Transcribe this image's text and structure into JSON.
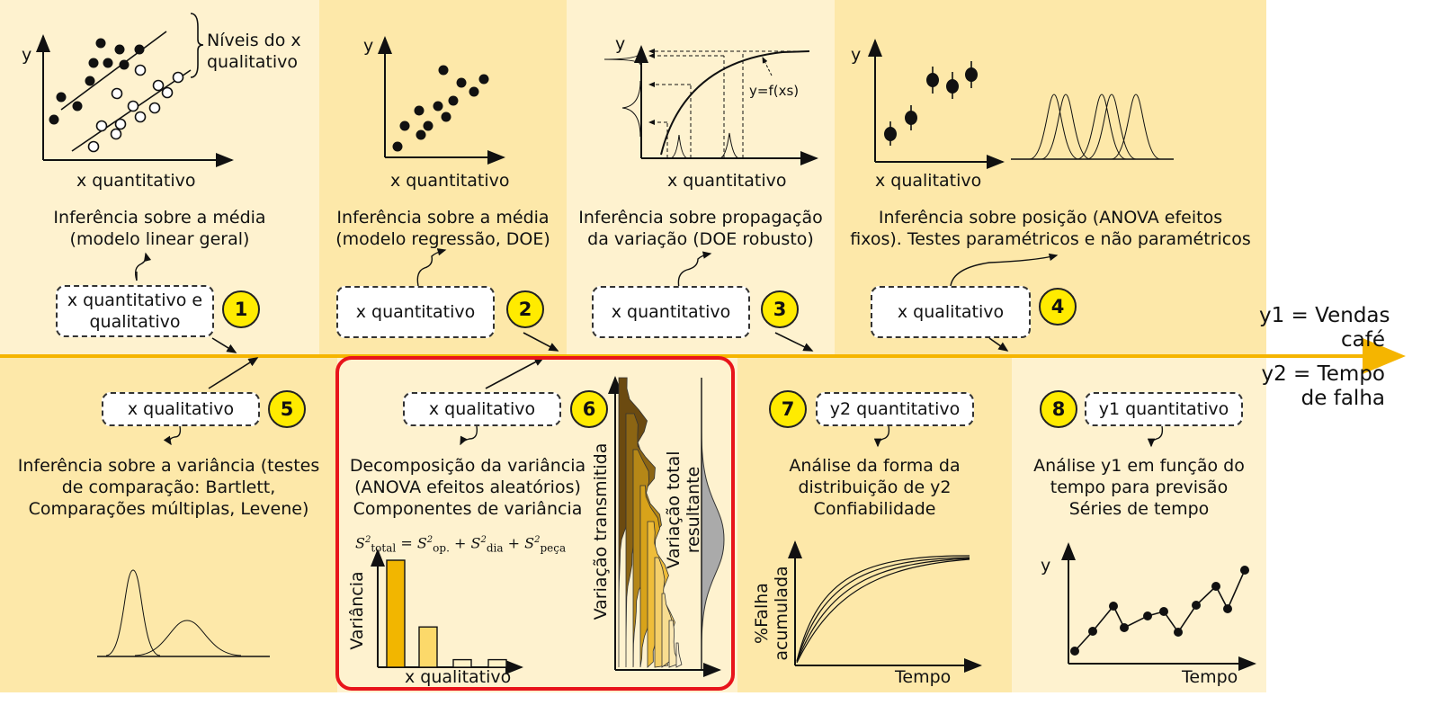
{
  "timeline": {
    "y1_label": "y1 = Vendas café",
    "y1_line1": "y1 = Vendas",
    "y1_line2": "café",
    "y2_line1": "y2 = Tempo",
    "y2_line2": "de falha"
  },
  "panels": [
    {
      "num": "1",
      "box": [
        "x quantitativo e",
        "qualitativo"
      ],
      "desc": [
        "Inferência sobre a média",
        "(modelo linear geral)"
      ],
      "y_axis": "y",
      "x_axis": "x quantitativo",
      "annotation": [
        "Níveis do x",
        "qualitativo"
      ]
    },
    {
      "num": "2",
      "box": [
        "x quantitativo"
      ],
      "desc": [
        "Inferência sobre a média",
        "(modelo regressão, DOE)"
      ],
      "y_axis": "y",
      "x_axis": "x quantitativo"
    },
    {
      "num": "3",
      "box": [
        "x quantitativo"
      ],
      "desc": [
        "Inferência sobre propagação",
        "da variação (DOE robusto)"
      ],
      "y_axis": "y",
      "x_axis": "x quantitativo",
      "annotation": [
        "y=f(xs)"
      ]
    },
    {
      "num": "4",
      "box": [
        "x qualitativo"
      ],
      "desc": [
        "Inferência sobre posição (ANOVA efeitos",
        "fixos). Testes paramétricos e não paramétricos"
      ],
      "y_axis": "y",
      "x_axis": "x qualitativo"
    },
    {
      "num": "5",
      "box": [
        "x qualitativo"
      ],
      "desc": [
        "Inferência sobre a variância (testes",
        "de comparação: Bartlett,",
        "Comparações múltiplas, Levene)"
      ]
    },
    {
      "num": "6",
      "box": [
        "x qualitativo"
      ],
      "desc": [
        "Decomposição da variância",
        "(ANOVA efeitos aleatórios)",
        "Componentes de variância"
      ],
      "y_axis": "Variância",
      "x_axis": "x qualitativo",
      "transmitted_label": "Variação transmitida",
      "result_label": [
        "Variação total",
        "resultante"
      ]
    },
    {
      "num": "7",
      "box": [
        "y2 quantitativo"
      ],
      "desc": [
        "Análise da forma da",
        "distribuição de y2",
        "Confiabilidade"
      ],
      "y_axis": [
        "%Falha",
        "acumulada"
      ],
      "x_axis": "Tempo"
    },
    {
      "num": "8",
      "box": [
        "y1 quantitativo"
      ],
      "desc": [
        "Análise y1 em função do",
        "tempo para previsão",
        "Séries de tempo"
      ],
      "y_axis": "y",
      "x_axis": "Tempo"
    }
  ],
  "formula": {
    "S": "S",
    "sup": "2",
    "total": "total",
    "op": "op.",
    "dia": "dia",
    "peca": "peça",
    "eq": "=",
    "plus": "+"
  },
  "variance_bars": [
    0.85,
    0.32,
    0.06,
    0.06
  ],
  "colors": {
    "arrow": "#f5b500",
    "bar_dark": "#f2b600",
    "bar_light": "#fcd96a",
    "red": "#e8141b",
    "badge": "#ffeb00"
  }
}
